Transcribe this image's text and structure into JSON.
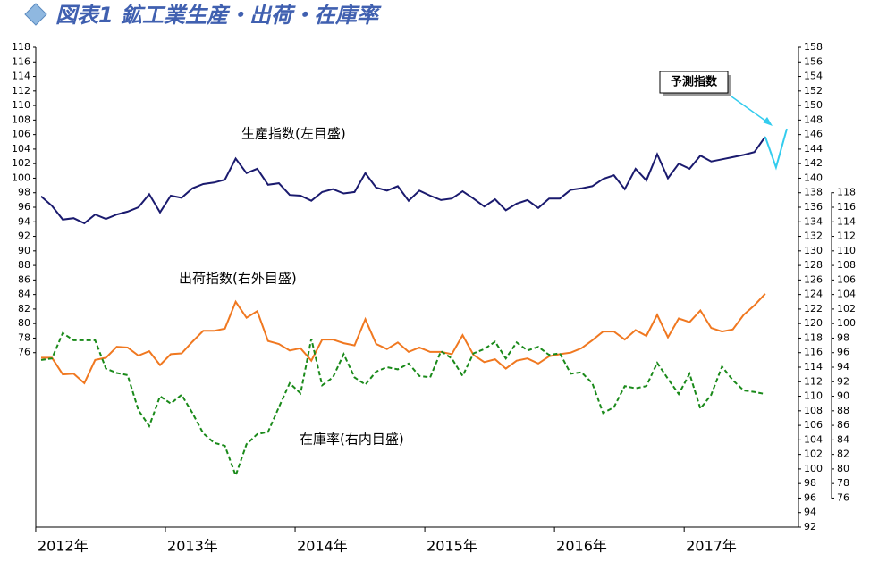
{
  "chart_data": {
    "type": "line",
    "title": "図表1 鉱工業生産・出荷・在庫率",
    "annotations": [
      "生産指数(左目盛)",
      "出荷指数(右外目盛)",
      "在庫率(右内目盛)",
      "予測指数"
    ],
    "categories": [
      "2012年",
      null,
      null,
      null,
      null,
      null,
      null,
      null,
      null,
      null,
      null,
      null,
      "2013年",
      null,
      null,
      null,
      null,
      null,
      null,
      null,
      null,
      null,
      null,
      null,
      "2014年",
      null,
      null,
      null,
      null,
      null,
      null,
      null,
      null,
      null,
      null,
      null,
      "2015年",
      null,
      null,
      null,
      null,
      null,
      null,
      null,
      null,
      null,
      null,
      null,
      "2016年",
      null,
      null,
      null,
      null,
      null,
      null,
      null,
      null,
      null,
      null,
      null,
      "2017年",
      null,
      null,
      null,
      null,
      null,
      null,
      null,
      null,
      null
    ],
    "ylim": [
      52,
      118
    ],
    "yticks": [
      76,
      78,
      80,
      82,
      84,
      86,
      88,
      90,
      92,
      94,
      96,
      98,
      100,
      102,
      104,
      106,
      108,
      110,
      112,
      114,
      116,
      118
    ],
    "y2lim": [
      92,
      158
    ],
    "y2ticks": [
      92,
      94,
      96,
      98,
      100,
      102,
      104,
      106,
      108,
      110,
      112,
      114,
      116,
      118,
      120,
      122,
      124,
      126,
      128,
      130,
      132,
      134,
      136,
      138,
      140,
      142,
      144,
      146,
      148,
      150,
      152,
      154,
      156,
      158
    ],
    "y3lim": [
      72,
      138
    ],
    "y3ticks": [
      76,
      78,
      80,
      82,
      84,
      86,
      88,
      90,
      92,
      94,
      96,
      98,
      100,
      102,
      104,
      106,
      108,
      110,
      112,
      114,
      116,
      118
    ],
    "series": [
      {
        "name": "生産指数",
        "color": "#1a1a6e",
        "axis": "y",
        "dashed": false,
        "values": [
          97.5,
          96.2,
          94.3,
          94.5,
          93.8,
          95,
          94.4,
          95,
          95.4,
          96,
          97.8,
          95.3,
          97.6,
          97.3,
          98.6,
          99.2,
          99.4,
          99.8,
          102.7,
          100.7,
          101.3,
          99.1,
          99.3,
          97.7,
          97.6,
          96.9,
          98.1,
          98.5,
          97.9,
          98.1,
          100.7,
          98.7,
          98.3,
          98.9,
          96.9,
          98.3,
          97.6,
          97,
          97.2,
          98.2,
          97.2,
          96.1,
          97.1,
          95.6,
          96.5,
          97,
          95.9,
          97.2,
          97.2,
          98.4,
          98.6,
          98.9,
          99.9,
          100.4,
          98.5,
          101.3,
          99.7,
          103.3,
          100,
          102,
          101.3,
          103.1,
          102.3,
          102.6,
          102.9,
          103.2,
          103.6,
          105.7,
          null,
          null
        ]
      },
      {
        "name": "予測指数",
        "color": "#33ccee",
        "axis": "y",
        "dashed": false,
        "values": [
          null,
          null,
          null,
          null,
          null,
          null,
          null,
          null,
          null,
          null,
          null,
          null,
          null,
          null,
          null,
          null,
          null,
          null,
          null,
          null,
          null,
          null,
          null,
          null,
          null,
          null,
          null,
          null,
          null,
          null,
          null,
          null,
          null,
          null,
          null,
          null,
          null,
          null,
          null,
          null,
          null,
          null,
          null,
          null,
          null,
          null,
          null,
          null,
          null,
          null,
          null,
          null,
          null,
          null,
          null,
          null,
          null,
          null,
          null,
          null,
          null,
          null,
          null,
          null,
          null,
          null,
          null,
          105.7,
          101.5,
          106.8
        ]
      },
      {
        "name": "出荷指数",
        "color": "#f07820",
        "axis": "y2",
        "dashed": false,
        "values": [
          115.3,
          115.3,
          113,
          113.1,
          111.8,
          115,
          115.3,
          116.8,
          116.7,
          115.6,
          116.2,
          114.3,
          115.8,
          115.9,
          117.5,
          119,
          119,
          119.3,
          123,
          120.8,
          121.7,
          117.6,
          117.2,
          116.3,
          116.6,
          114.9,
          117.8,
          117.8,
          117.3,
          117,
          120.6,
          117.2,
          116.5,
          117.4,
          116.1,
          116.7,
          116.1,
          116.1,
          115.8,
          118.4,
          115.7,
          114.7,
          115.1,
          113.8,
          114.9,
          115.2,
          114.5,
          115.5,
          115.8,
          116,
          116.6,
          117.7,
          118.9,
          118.9,
          117.8,
          119.1,
          118.3,
          121.2,
          118.1,
          120.7,
          120.2,
          121.8,
          119.4,
          118.9,
          119.2,
          121.2,
          122.5,
          124.1,
          null,
          null
        ]
      },
      {
        "name": "在庫率",
        "color": "#1a8a1a",
        "axis": "y3",
        "dashed": true,
        "values": [
          95,
          95.2,
          98.7,
          97.7,
          97.7,
          97.7,
          93.8,
          93.2,
          92.9,
          88.1,
          85.9,
          90,
          89,
          90.2,
          87.7,
          84.9,
          83.6,
          83.2,
          79.1,
          83.4,
          84.8,
          85.1,
          88.5,
          91.8,
          90.4,
          97.9,
          91.5,
          92.6,
          95.8,
          92.6,
          91.6,
          93.4,
          94,
          93.7,
          94.5,
          92.8,
          92.6,
          96.2,
          95.2,
          92.8,
          95.9,
          96.5,
          97.5,
          95.2,
          97.4,
          96.3,
          96.8,
          95.7,
          95.9,
          93.1,
          93.3,
          91.8,
          87.7,
          88.5,
          91.4,
          91.1,
          91.4,
          94.6,
          92.4,
          90.3,
          93.1,
          88.3,
          90.2,
          94.1,
          92.2,
          90.8,
          90.6,
          90.3,
          null,
          null
        ]
      }
    ]
  }
}
